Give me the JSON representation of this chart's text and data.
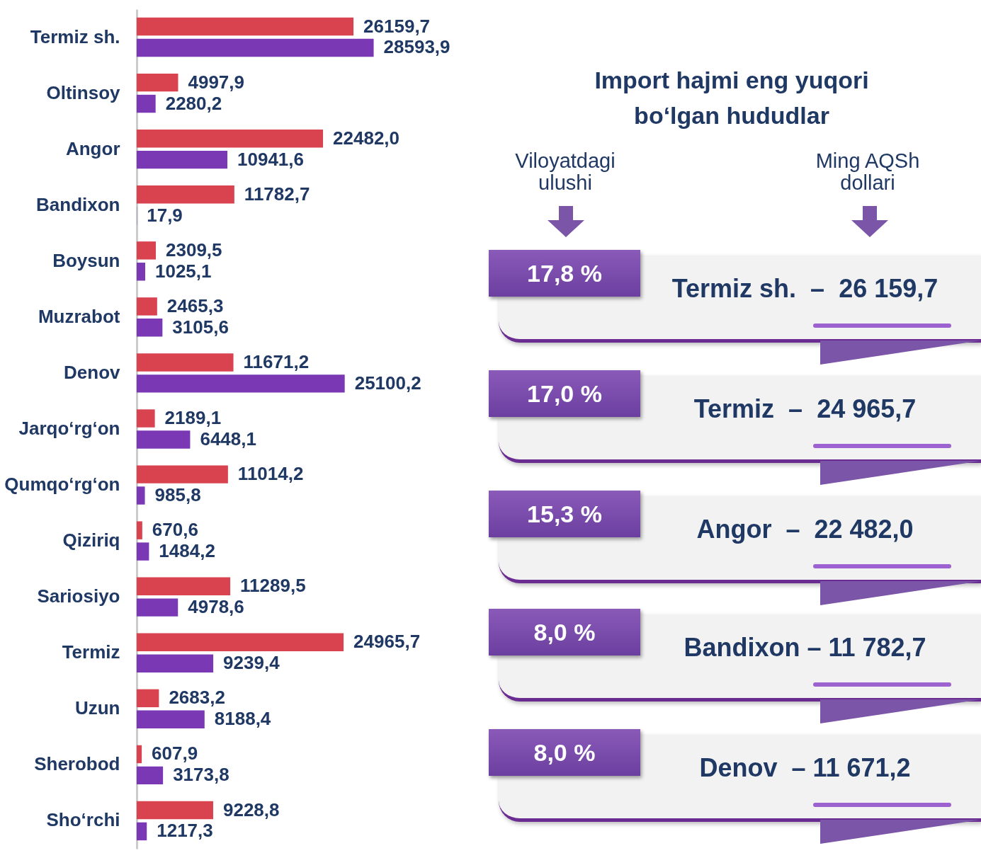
{
  "chart_data": [
    {
      "type": "bar",
      "orientation": "horizontal",
      "legend": false,
      "categories": [
        "Termiz sh.",
        "Oltinsoy",
        "Angor",
        "Bandixon",
        "Boysun",
        "Muzrabot",
        "Denov",
        "Jarqo‘rg‘on",
        "Qumqo‘rg‘on",
        "Qiziriq",
        "Sariosiyo",
        "Termiz",
        "Uzun",
        "Sherobod",
        "Sho‘rchi"
      ],
      "series": [
        {
          "color": "#d9434f",
          "values": [
            26159.7,
            4997.9,
            22482.0,
            11782.7,
            2309.5,
            2465.3,
            11671.2,
            2189.1,
            11014.2,
            670.6,
            11289.5,
            24965.7,
            2683.2,
            607.9,
            9228.8
          ],
          "value_labels": [
            "26159,7",
            "4997,9",
            "22482,0",
            "11782,7",
            "2309,5",
            "2465,3",
            "11671,2",
            "2189,1",
            "11014,2",
            "670,6",
            "11289,5",
            "24965,7",
            "2683,2",
            "607,9",
            "9228,8"
          ]
        },
        {
          "color": "#7b38b4",
          "values": [
            28593.9,
            2280.2,
            10941.6,
            17.9,
            1025.1,
            3105.6,
            25100.2,
            6448.1,
            985.8,
            1484.2,
            4978.6,
            9239.4,
            8188.4,
            3173.8,
            1217.3
          ],
          "value_labels": [
            "28593,9",
            "2280,2",
            "10941,6",
            "17,9",
            "1025,1",
            "3105,6",
            "25100,2",
            "6448,1",
            "985,8",
            "1484,2",
            "4978,6",
            "9239,4",
            "8188,4",
            "3173,8",
            "1217,3"
          ]
        }
      ]
    },
    {
      "type": "other",
      "title": "Import hajmi eng yuqori bo‘lgan hududlar",
      "annotations": [
        "Viloyatdagi ulushi",
        "Ming AQSh dollari",
        "17,8 %",
        "Termiz sh.  –  26 159,7",
        "17,0 %",
        "Termiz  –  24 965,7",
        "15,3 %",
        "Angor  –  22 482,0",
        "8,0 %",
        "Bandixon – 11 782,7",
        "8,0 %",
        "Denov  – 11 671,2"
      ]
    }
  ]
}
